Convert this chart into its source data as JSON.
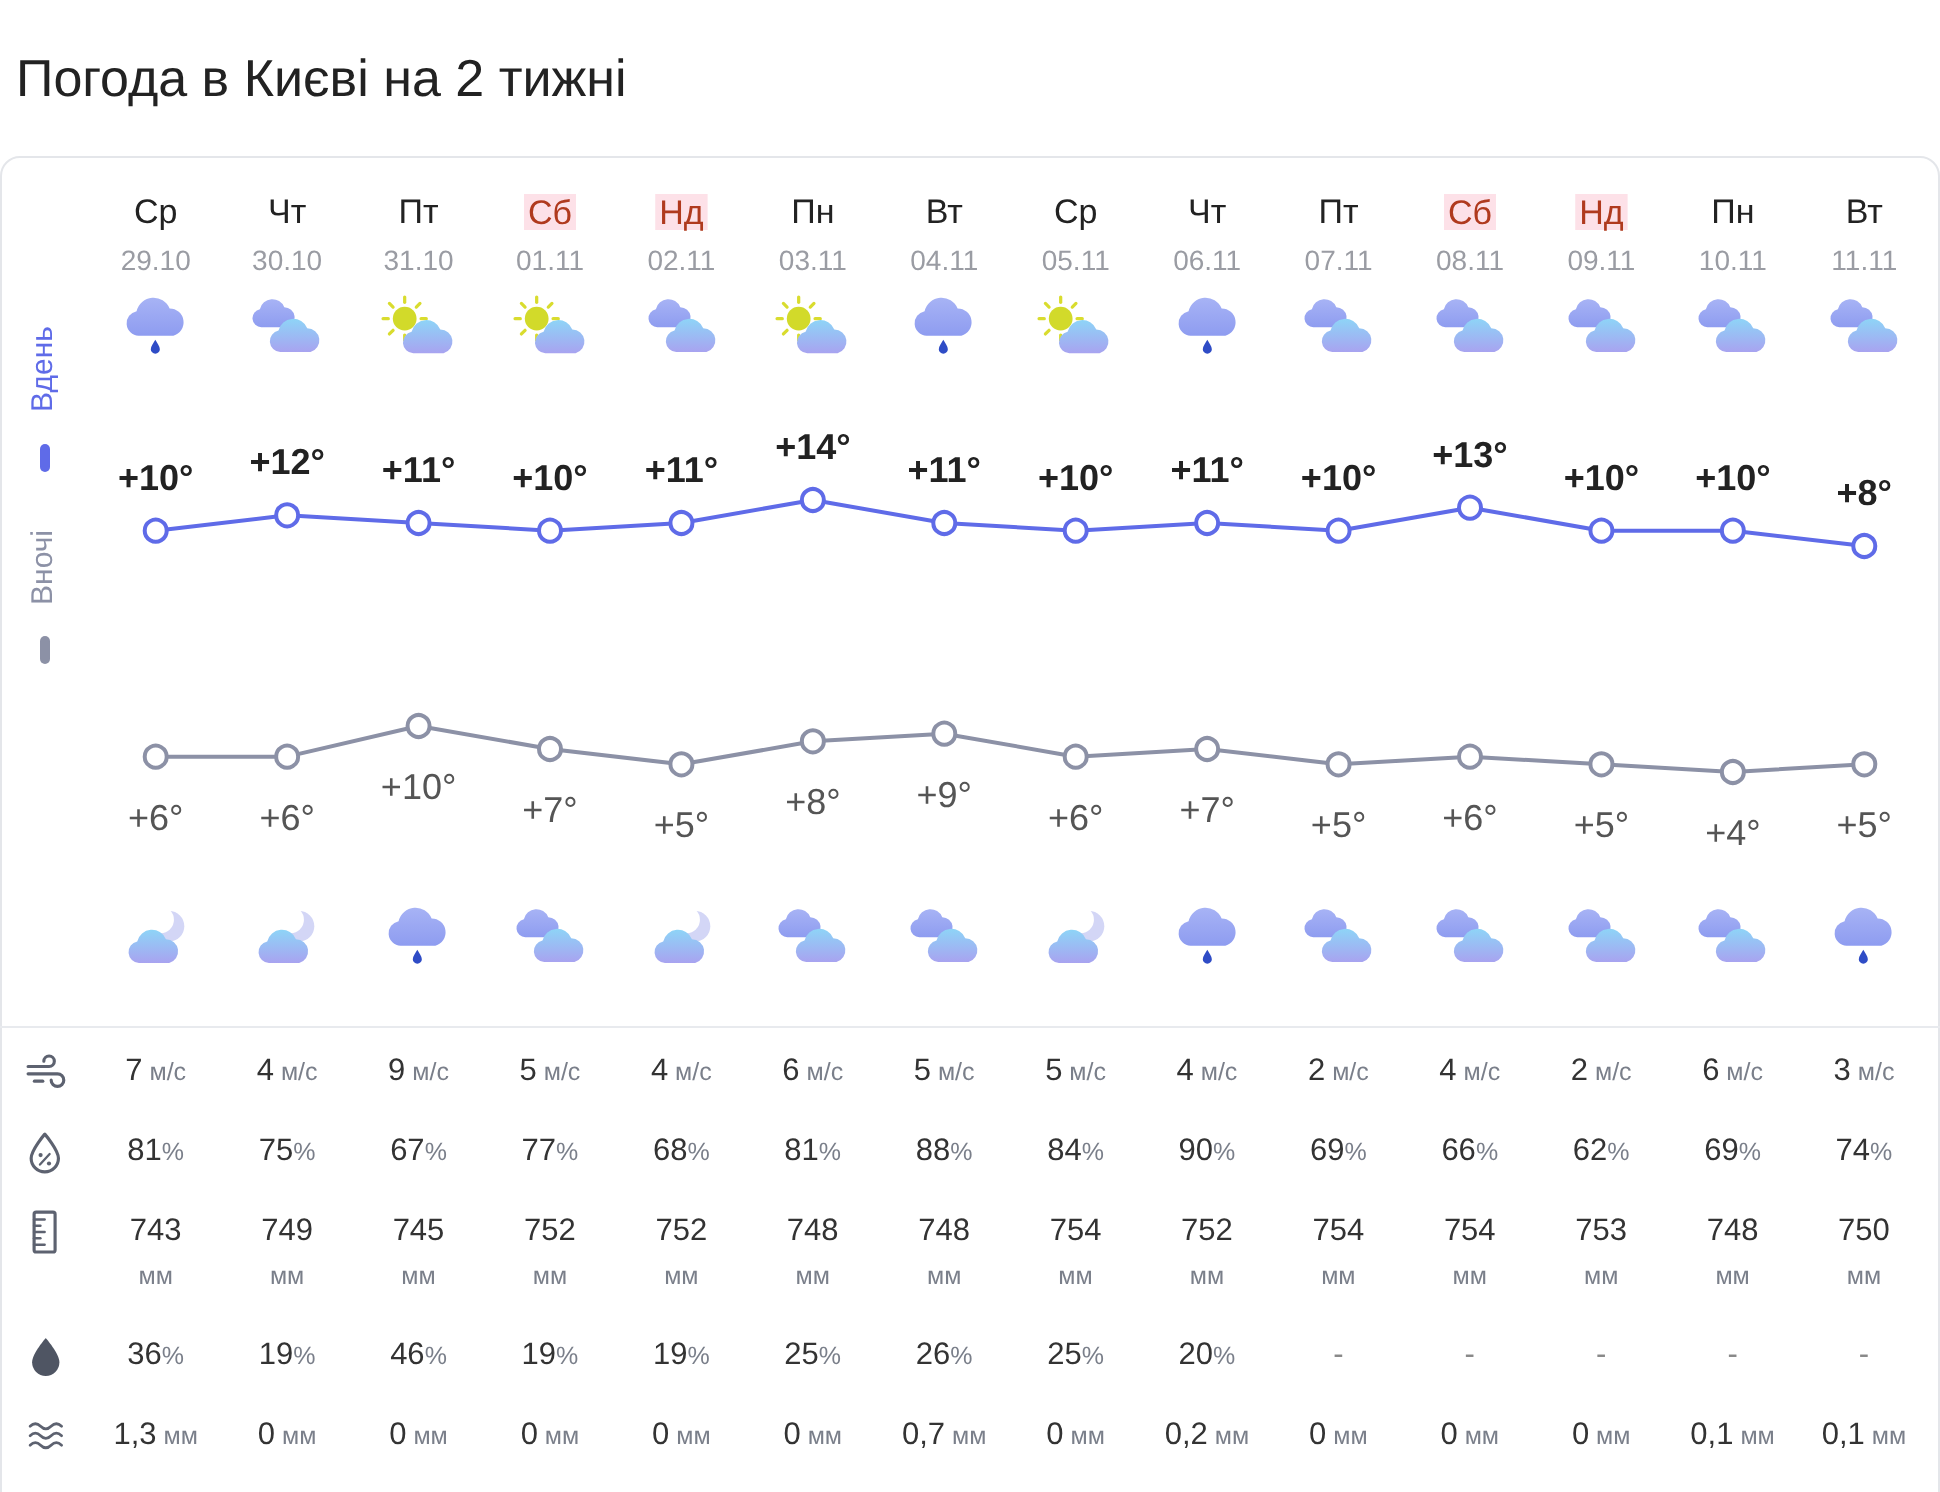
{
  "chart_data": [
    {
      "type": "line",
      "title": "Погода в Києві на 2 тижні",
      "categories": [
        "Ср\n29.10",
        "Чт\n30.10",
        "Пт\n31.10",
        "Сб\n01.11",
        "Нд\n02.11",
        "Пн\n03.11",
        "Вт\n04.11",
        "Ср\n05.11",
        "Чт\n06.11",
        "Пт\n07.11",
        "Сб\n08.11",
        "Нд\n09.11",
        "Пн\n10.11",
        "Вт\n11.11"
      ],
      "series": [
        {
          "name": "Вдень",
          "color": "#5f6be8",
          "values": [
            10,
            12,
            11,
            10,
            11,
            14,
            11,
            10,
            11,
            10,
            13,
            10,
            10,
            8
          ],
          "value_labels": [
            "+10°",
            "+12°",
            "+11°",
            "+10°",
            "+11°",
            "+14°",
            "+11°",
            "+10°",
            "+11°",
            "+10°",
            "+13°",
            "+10°",
            "+10°",
            "+8°"
          ]
        }
      ],
      "marker": "circle",
      "legend": "left"
    },
    {
      "type": "line",
      "categories": [
        null,
        null,
        null,
        null,
        null,
        null,
        null,
        null,
        null,
        null,
        null,
        null,
        null,
        null
      ],
      "series": [
        {
          "name": "Вночі",
          "color": "#8c91a6",
          "values": [
            6,
            6,
            10,
            7,
            5,
            8,
            9,
            6,
            7,
            5,
            6,
            5,
            4,
            5
          ],
          "value_labels": [
            "+6°",
            "+6°",
            "+10°",
            "+7°",
            "+5°",
            "+8°",
            "+9°",
            "+6°",
            "+7°",
            "+5°",
            "+6°",
            "+5°",
            "+4°",
            "+5°"
          ]
        }
      ],
      "marker": "circle",
      "legend": "left"
    },
    {
      "type": "other",
      "annotations": [
        "7 м/с",
        "4 м/с",
        "9 м/с",
        "5 м/с",
        "4 м/с",
        "6 м/с",
        "5 м/с",
        "5 м/с",
        "4 м/с",
        "2 м/с",
        "4 м/с",
        "2 м/с",
        "6 м/с",
        "3 м/с",
        "81%",
        "75%",
        "67%",
        "77%",
        "68%",
        "81%",
        "88%",
        "84%",
        "90%",
        "69%",
        "66%",
        "62%",
        "69%",
        "74%",
        "743\nмм",
        "749\nмм",
        "745\nмм",
        "752\nмм",
        "752\nмм",
        "748\nмм",
        "748\nмм",
        "754\nмм",
        "752\nмм",
        "754\nмм",
        "754\nмм",
        "753\nмм",
        "748\nмм",
        "750\nмм",
        "36%",
        "19%",
        "46%",
        "19%",
        "19%",
        "25%",
        "26%",
        "25%",
        "20%",
        "-",
        "-",
        "-",
        "-",
        "-",
        "1,3 мм",
        "0 мм",
        "0 мм",
        "0 мм",
        "0 мм",
        "0 мм",
        "0,7 мм",
        "0 мм",
        "0,2 мм",
        "0 мм",
        "0 мм",
        "0 мм",
        "0,1 мм",
        "0,1 мм"
      ]
    }
  ]
}
